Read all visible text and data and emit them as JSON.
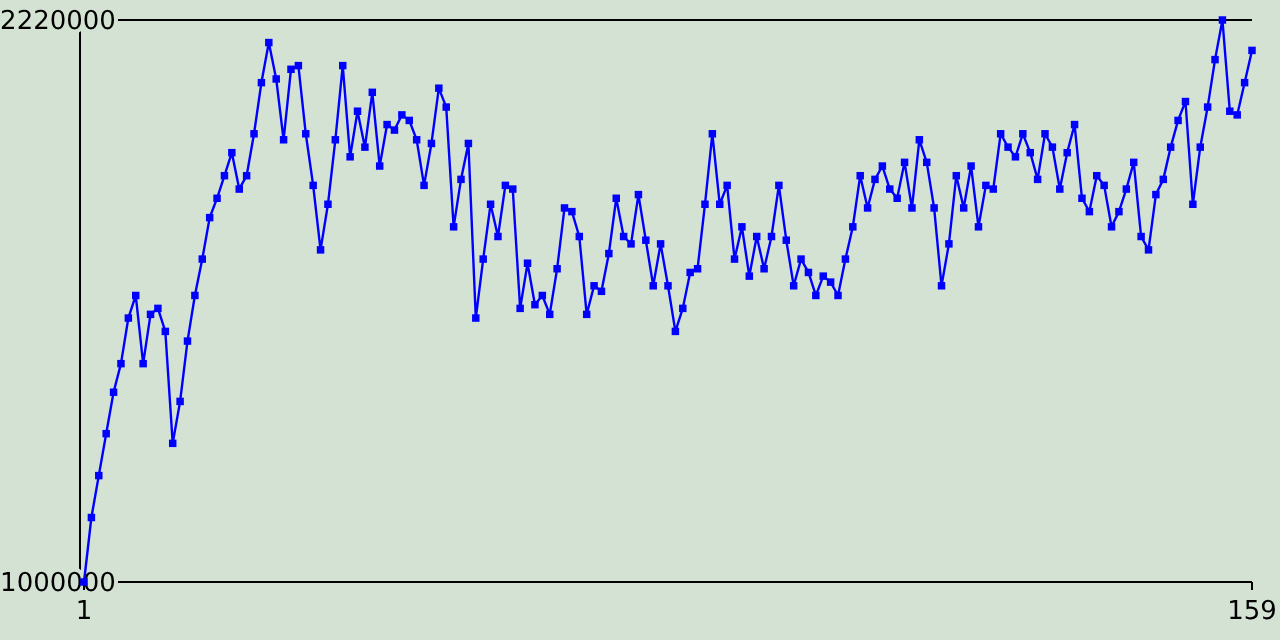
{
  "chart_data": {
    "type": "line",
    "x": [
      1,
      2,
      3,
      4,
      5,
      6,
      7,
      8,
      9,
      10,
      11,
      12,
      13,
      14,
      15,
      16,
      17,
      18,
      19,
      20,
      21,
      22,
      23,
      24,
      25,
      26,
      27,
      28,
      29,
      30,
      31,
      32,
      33,
      34,
      35,
      36,
      37,
      38,
      39,
      40,
      41,
      42,
      43,
      44,
      45,
      46,
      47,
      48,
      49,
      50,
      51,
      52,
      53,
      54,
      55,
      56,
      57,
      58,
      59,
      60,
      61,
      62,
      63,
      64,
      65,
      66,
      67,
      68,
      69,
      70,
      71,
      72,
      73,
      74,
      75,
      76,
      77,
      78,
      79,
      80,
      81,
      82,
      83,
      84,
      85,
      86,
      87,
      88,
      89,
      90,
      91,
      92,
      93,
      94,
      95,
      96,
      97,
      98,
      99,
      100,
      101,
      102,
      103,
      104,
      105,
      106,
      107,
      108,
      109,
      110,
      111,
      112,
      113,
      114,
      115,
      116,
      117,
      118,
      119,
      120,
      121,
      122,
      123,
      124,
      125,
      126,
      127,
      128,
      129,
      130,
      131,
      132,
      133,
      134,
      135,
      136,
      137,
      138,
      139,
      140,
      141,
      142,
      143,
      144,
      145,
      146,
      147,
      148,
      149,
      150,
      151,
      152,
      153,
      154,
      155,
      156,
      157,
      158,
      159
    ],
    "series": [
      {
        "color": "#0000ff",
        "values": [
          1000000,
          1140000,
          1231000,
          1322000,
          1412000,
          1474000,
          1573000,
          1622000,
          1474000,
          1581000,
          1594000,
          1544000,
          1301000,
          1392000,
          1523000,
          1622000,
          1701000,
          1791000,
          1833000,
          1882000,
          1932000,
          1853000,
          1882000,
          1973000,
          2084000,
          2171000,
          2092000,
          1960000,
          2113000,
          2121000,
          1973000,
          1861000,
          1721000,
          1820000,
          1960000,
          2121000,
          1923000,
          2022000,
          1944000,
          2063000,
          1903000,
          1993000,
          1981000,
          2014000,
          2002000,
          1960000,
          1861000,
          1952000,
          2072000,
          2031000,
          1771000,
          1874000,
          1952000,
          1573000,
          1701000,
          1820000,
          1750000,
          1861000,
          1853000,
          1594000,
          1692000,
          1602000,
          1622000,
          1581000,
          1680000,
          1812000,
          1804000,
          1750000,
          1581000,
          1643000,
          1631000,
          1713000,
          1833000,
          1750000,
          1734000,
          1841000,
          1742000,
          1643000,
          1734000,
          1643000,
          1544000,
          1594000,
          1672000,
          1680000,
          1820000,
          1973000,
          1820000,
          1861000,
          1701000,
          1771000,
          1664000,
          1750000,
          1680000,
          1750000,
          1861000,
          1742000,
          1643000,
          1701000,
          1672000,
          1622000,
          1664000,
          1651000,
          1622000,
          1701000,
          1771000,
          1882000,
          1812000,
          1874000,
          1903000,
          1853000,
          1833000,
          1911000,
          1812000,
          1960000,
          1911000,
          1812000,
          1643000,
          1734000,
          1882000,
          1812000,
          1903000,
          1771000,
          1861000,
          1853000,
          1973000,
          1944000,
          1923000,
          1973000,
          1932000,
          1874000,
          1973000,
          1944000,
          1853000,
          1932000,
          1993000,
          1833000,
          1804000,
          1882000,
          1861000,
          1771000,
          1804000,
          1853000,
          1911000,
          1750000,
          1721000,
          1841000,
          1874000,
          1944000,
          2002000,
          2043000,
          1820000,
          1944000,
          2031000,
          2134000,
          2220000,
          2022000,
          2014000,
          2084000,
          2154000
        ]
      }
    ],
    "xlim": [
      1,
      159
    ],
    "xticks": [
      1,
      159
    ],
    "ylim": [
      1000000,
      2220000
    ],
    "yticks": [
      1000000,
      2220000
    ],
    "grid": false,
    "marker": "square",
    "line_style": "solid"
  }
}
